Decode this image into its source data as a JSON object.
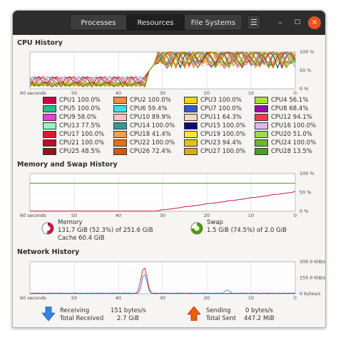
{
  "tabs": [
    {
      "label": "Processes",
      "active": false
    },
    {
      "label": "Resources",
      "active": true
    },
    {
      "label": "File Systems",
      "active": false
    }
  ],
  "menu_icon": "hamburger-menu-icon",
  "window_controls": {
    "minimize": "–",
    "maximize": "□",
    "close": "×"
  },
  "cpu": {
    "title": "CPU History",
    "x_labels": [
      "60 seconds",
      "50",
      "40",
      "30",
      "20",
      "10",
      "0"
    ],
    "y_labels": [
      "100 %",
      "50 %",
      "0 %"
    ],
    "items": [
      {
        "label": "CPU1",
        "value": "100.0%",
        "color": "#cc0044"
      },
      {
        "label": "CPU2",
        "value": "100.0%",
        "color": "#f58d3f"
      },
      {
        "label": "CPU3",
        "value": "100.0%",
        "color": "#f2d411"
      },
      {
        "label": "CPU4",
        "value": "56.1%",
        "color": "#a4e43a"
      },
      {
        "label": "CPU5",
        "value": "100.0%",
        "color": "#2bba8c"
      },
      {
        "label": "CPU6",
        "value": "59.4%",
        "color": "#3edceb"
      },
      {
        "label": "CPU7",
        "value": "100.0%",
        "color": "#345fb9"
      },
      {
        "label": "CPU8",
        "value": "68.4%",
        "color": "#8c1597"
      },
      {
        "label": "CPU9",
        "value": "58.0%",
        "color": "#e63fd4"
      },
      {
        "label": "CPU10",
        "value": "89.9%",
        "color": "#f7c0c2"
      },
      {
        "label": "CPU11",
        "value": "64.3%",
        "color": "#fbd8b4"
      },
      {
        "label": "CPU12",
        "value": "94.1%",
        "color": "#f33a4f"
      },
      {
        "label": "CPU13",
        "value": "77.5%",
        "color": "#a2f0c1"
      },
      {
        "label": "CPU14",
        "value": "100.0%",
        "color": "#3a9893"
      },
      {
        "label": "CPU15",
        "value": "100.0%",
        "color": "#0d0c6b"
      },
      {
        "label": "CPU16",
        "value": "100.0%",
        "color": "#ddb8ee"
      },
      {
        "label": "CPU17",
        "value": "100.0%",
        "color": "#de1a2c"
      },
      {
        "label": "CPU18",
        "value": "41.4%",
        "color": "#f4a04a"
      },
      {
        "label": "CPU19",
        "value": "100.0%",
        "color": "#fbe43a"
      },
      {
        "label": "CPU20",
        "value": "51.0%",
        "color": "#9bd955"
      },
      {
        "label": "CPU21",
        "value": "100.0%",
        "color": "#b70f27"
      },
      {
        "label": "CPU22",
        "value": "100.0%",
        "color": "#e0711c"
      },
      {
        "label": "CPU23",
        "value": "94.4%",
        "color": "#e4c30f"
      },
      {
        "label": "CPU24",
        "value": "100.0%",
        "color": "#6fb32c"
      },
      {
        "label": "CPU25",
        "value": "48.5%",
        "color": "#a10a1a"
      },
      {
        "label": "CPU26",
        "value": "72.4%",
        "color": "#d05a10"
      },
      {
        "label": "CPU27",
        "value": "100.0%",
        "color": "#d4b00c"
      },
      {
        "label": "CPU28",
        "value": "13.5%",
        "color": "#4e9d1b"
      }
    ]
  },
  "memory": {
    "title": "Memory and Swap History",
    "x_labels": [
      "60 seconds",
      "50",
      "40",
      "30",
      "20",
      "10",
      "0"
    ],
    "y_labels": [
      "100 %",
      "50 %",
      "0 %"
    ],
    "mem_label": "Memory",
    "mem_line1": "131.7 GiB (52.3%) of 251.6 GiB",
    "mem_line2": "Cache 60.4 GiB",
    "mem_color": "#c01c4a",
    "mem_fraction": 0.523,
    "swap_label": "Swap",
    "swap_line1": "1.5 GiB (74.5%) of 2.0 GiB",
    "swap_color": "#4e9a06",
    "swap_fraction": 0.745
  },
  "network": {
    "title": "Network History",
    "x_labels": [
      "60 seconds",
      "50",
      "40",
      "30",
      "20",
      "10",
      "0"
    ],
    "y_labels": [
      "300.0 KiB/s",
      "150.0 KiB/s",
      "0 bytes/s"
    ],
    "receiving_label": "Receiving",
    "receiving_value": "151 bytes/s",
    "total_received_label": "Total Received",
    "total_received_value": "2.7 GiB",
    "sending_label": "Sending",
    "sending_value": "0 bytes/s",
    "total_sent_label": "Total Sent",
    "total_sent_value": "447.2 MiB",
    "receive_color": "#3584e4",
    "send_color": "#e01b24"
  }
}
